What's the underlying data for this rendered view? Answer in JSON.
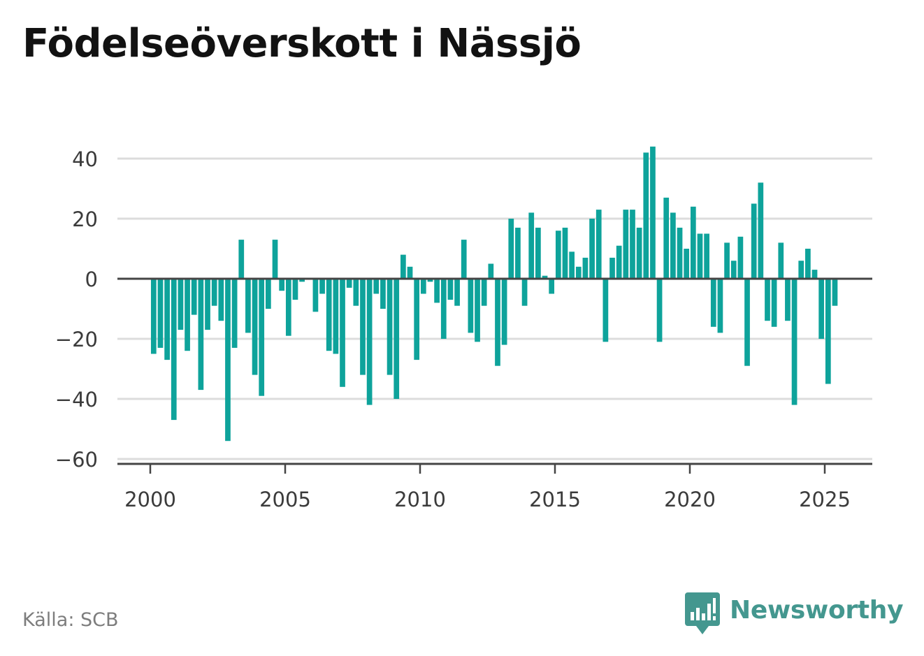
{
  "title": "Födelseöverskott i Nässjö",
  "source": "Källa: SCB",
  "brand": {
    "name": "Newsworthy",
    "icon": "newsworthy-logo-icon",
    "color": "#44978f"
  },
  "colors": {
    "bar": "#0ea39b",
    "grid": "#dcdcdc",
    "zero_line": "#444444",
    "axis": "#444444"
  },
  "chart_data": {
    "type": "bar",
    "title": "Födelseöverskott i Nässjö",
    "xlabel": "",
    "ylabel": "",
    "frequency": "quarterly",
    "xlim": [
      1998.8,
      2026.8
    ],
    "ylim": [
      -62,
      42
    ],
    "grid": true,
    "legend": "none",
    "x_ticks": [
      2000,
      2005,
      2010,
      2015,
      2020,
      2025
    ],
    "x_tick_labels": [
      "2000",
      "2005",
      "2010",
      "2015",
      "2020",
      "2025"
    ],
    "y_ticks": [
      -60,
      -40,
      -20,
      0,
      20,
      40
    ],
    "y_tick_labels": [
      "−60",
      "−40",
      "−20",
      "0",
      "20",
      "40"
    ],
    "start": "2000 Q1",
    "values": [
      -25,
      -23,
      -27,
      -47,
      -17,
      -24,
      -12,
      -37,
      -17,
      -9,
      -14,
      -54,
      -23,
      13,
      -18,
      -32,
      -39,
      -10,
      13,
      -4,
      -19,
      -7,
      -1,
      0,
      -11,
      -5,
      -24,
      -25,
      -36,
      -3,
      -9,
      -32,
      -42,
      -5,
      -10,
      -32,
      -40,
      8,
      4,
      -27,
      -5,
      -1,
      -8,
      -20,
      -7,
      -9,
      13,
      -18,
      -21,
      -9,
      5,
      -29,
      -22,
      20,
      17,
      -9,
      22,
      17,
      1,
      -5,
      16,
      17,
      9,
      4,
      7,
      20,
      23,
      -21,
      7,
      11,
      23,
      23,
      17,
      42,
      44,
      -21,
      27,
      22,
      17,
      10,
      24,
      15,
      15,
      -16,
      -18,
      12,
      6,
      14,
      -29,
      25,
      32,
      -14,
      -16,
      12,
      -14,
      -42,
      6,
      10,
      3,
      -20,
      -35,
      -9
    ]
  }
}
